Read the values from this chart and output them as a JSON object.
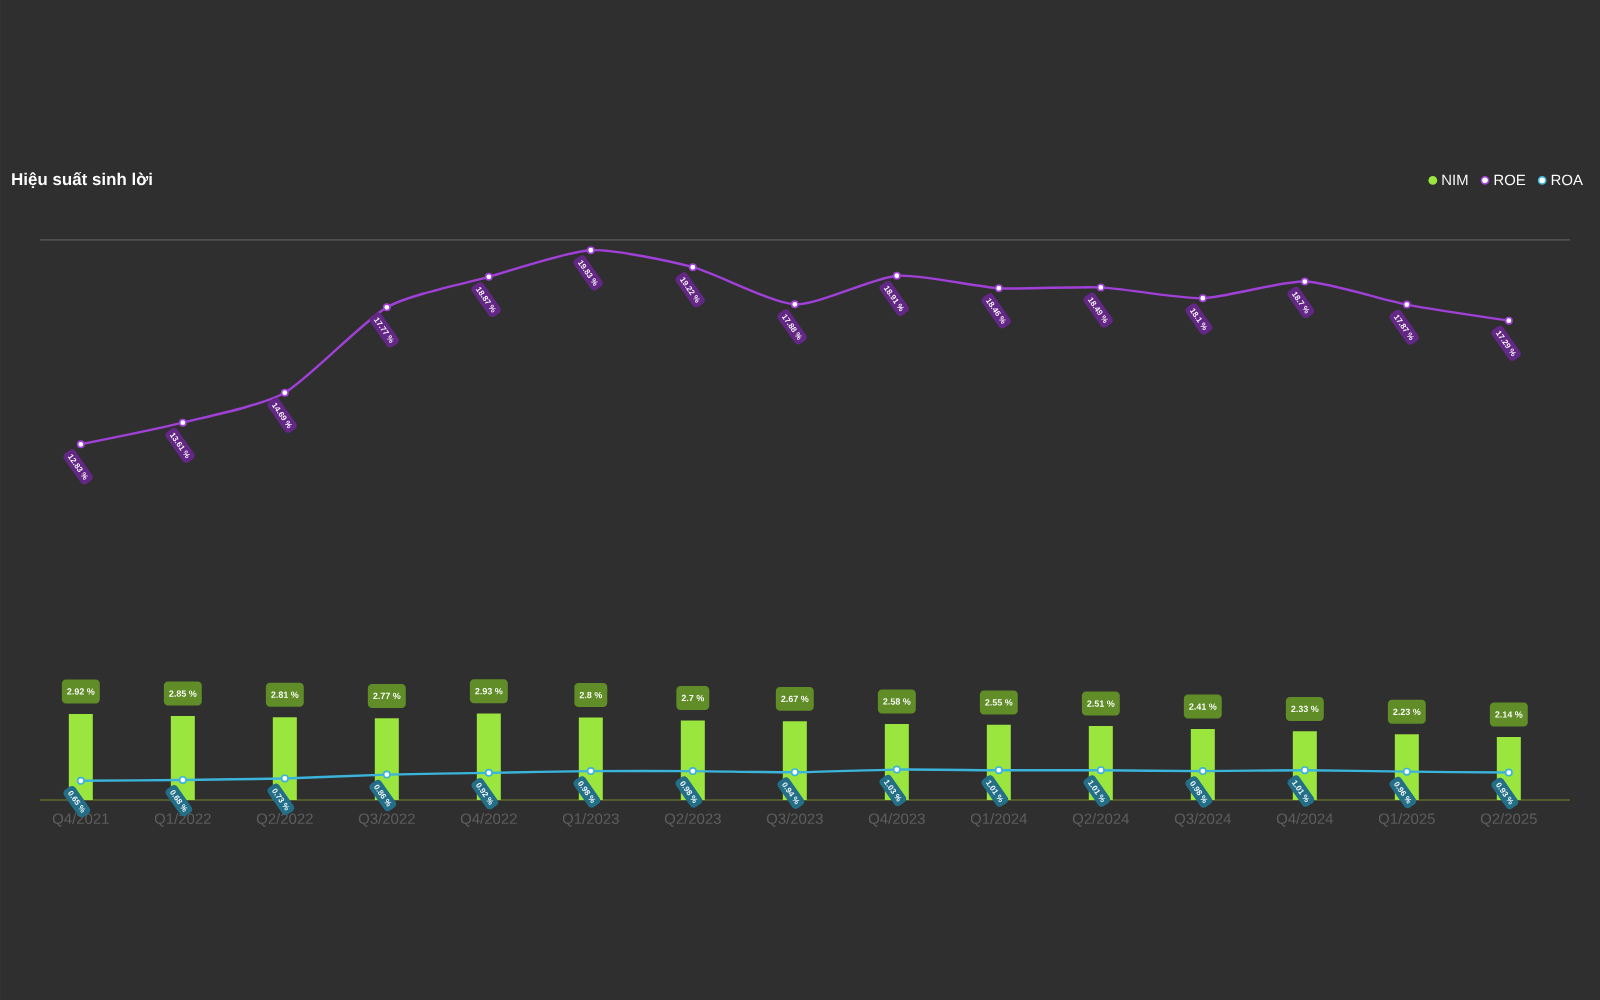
{
  "chart_data": {
    "type": "bar",
    "title": "Hiệu suất sinh lời",
    "categories": [
      "Q4/2021",
      "Q1/2022",
      "Q2/2022",
      "Q3/2022",
      "Q4/2022",
      "Q1/2023",
      "Q2/2023",
      "Q3/2023",
      "Q4/2023",
      "Q1/2024",
      "Q2/2024",
      "Q3/2024",
      "Q4/2024",
      "Q1/2025",
      "Q2/2025"
    ],
    "series": [
      {
        "name": "NIM",
        "color": "#9be53f",
        "values": [
          2.92,
          2.85,
          2.81,
          2.77,
          2.93,
          2.8,
          2.7,
          2.67,
          2.58,
          2.55,
          2.51,
          2.41,
          2.33,
          2.23,
          2.14
        ],
        "value_labels": [
          "2.92 %",
          "2.85 %",
          "2.81 %",
          "2.77 %",
          "2.93 %",
          "2.8 %",
          "2.7 %",
          "2.67 %",
          "2.58 %",
          "2.55 %",
          "2.51 %",
          "2.41 %",
          "2.33 %",
          "2.23 %",
          "2.14 %"
        ]
      },
      {
        "name": "ROE",
        "type": "line",
        "axis": "y2",
        "color": "#a040d8",
        "values": [
          12.83,
          13.61,
          14.69,
          17.77,
          18.87,
          19.83,
          19.22,
          17.88,
          18.91,
          18.46,
          18.49,
          18.1,
          18.7,
          17.87,
          17.29
        ],
        "value_labels": [
          "12.83 %",
          "13.61 %",
          "14.69 %",
          "17.77 %",
          "18.87 %",
          "19.83 %",
          "19.22 %",
          "17.88 %",
          "18.91 %",
          "18.46 %",
          "18.49 %",
          "18.1 %",
          "18.7 %",
          "17.87 %",
          "17.29 %"
        ]
      },
      {
        "name": "ROA",
        "type": "line",
        "color": "#3bb4dc",
        "values": [
          0.65,
          0.68,
          0.73,
          0.86,
          0.92,
          0.98,
          0.98,
          0.94,
          1.03,
          1.01,
          1.01,
          0.98,
          1.01,
          0.96,
          0.93
        ],
        "value_labels": [
          "0.65 %",
          "0.68 %",
          "0.73 %",
          "0.86 %",
          "0.92 %",
          "0.98 %",
          "0.98 %",
          "0.94 %",
          "1.03 %",
          "1.01 %",
          "1.01 %",
          "0.98 %",
          "1.01 %",
          "0.96 %",
          "0.93 %"
        ]
      }
    ],
    "ylim": [
      0,
      19
    ],
    "y2lim": [
      0,
      20.2
    ],
    "tick_labels": "x",
    "marker": "circle",
    "legend": "top right"
  }
}
